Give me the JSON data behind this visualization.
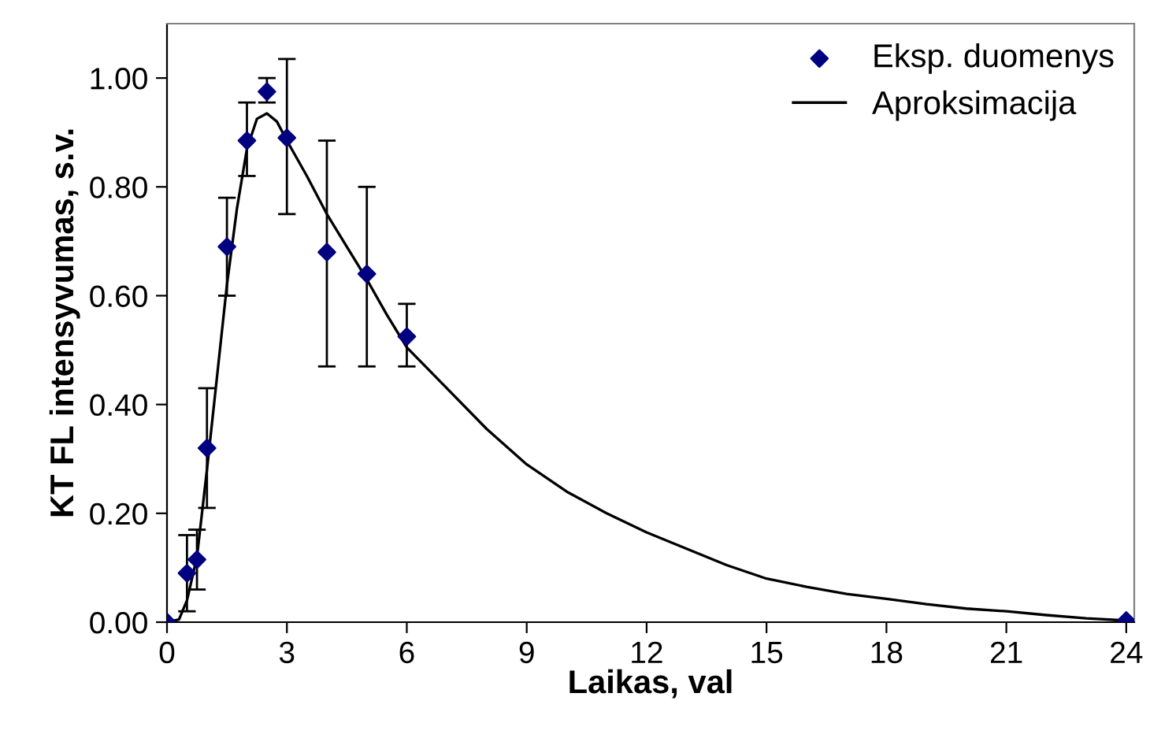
{
  "chart_data": {
    "type": "scatter",
    "xlabel": "Laikas, val",
    "ylabel": "KT FL intensyvumas, s.v.",
    "xlim": [
      0,
      24.2
    ],
    "xticks": [
      0,
      3,
      6,
      9,
      12,
      15,
      18,
      21,
      24
    ],
    "ylim": [
      0,
      1.1
    ],
    "yticks": [
      {
        "value": 0,
        "label": "0.00"
      },
      {
        "value": 0.2,
        "label": "0.20"
      },
      {
        "value": 0.4,
        "label": "0.40"
      },
      {
        "value": 0.6,
        "label": "0.60"
      },
      {
        "value": 0.8,
        "label": "0.80"
      },
      {
        "value": 1.0,
        "label": "1.00"
      }
    ],
    "grid": false,
    "legend": "top right",
    "series": [
      {
        "name": "Eksp. duomenys",
        "marker": "diamond",
        "color": "#000080",
        "x": [
          0,
          0.5,
          0.75,
          1,
          1.5,
          2,
          2.5,
          3,
          4,
          5,
          6,
          24
        ],
        "values": [
          0,
          0.09,
          0.115,
          0.32,
          0.69,
          0.885,
          0.975,
          0.89,
          0.68,
          0.64,
          0.525,
          0.003
        ],
        "errors": [
          null,
          [
            0.02,
            0.16
          ],
          [
            0.06,
            0.17
          ],
          [
            0.21,
            0.43
          ],
          [
            0.6,
            0.78
          ],
          [
            0.82,
            0.955
          ],
          [
            0.955,
            1.0
          ],
          [
            0.75,
            1.035
          ],
          [
            0.47,
            0.885
          ],
          [
            0.47,
            0.8
          ],
          [
            0.47,
            0.585
          ],
          null
        ]
      },
      {
        "name": "Aproksimacija",
        "type": "line",
        "marker": "none",
        "line_style": "solid",
        "color": "#000000",
        "x": [
          0,
          0.3,
          0.5,
          0.75,
          1,
          1.25,
          1.5,
          1.75,
          2,
          2.25,
          2.5,
          2.75,
          3,
          3.5,
          4,
          4.5,
          5,
          5.5,
          6,
          7,
          8,
          9,
          10,
          11,
          12,
          13,
          14,
          15,
          16,
          17,
          18,
          19,
          20,
          21,
          22,
          23,
          24
        ],
        "values": [
          0,
          0.005,
          0.04,
          0.12,
          0.28,
          0.45,
          0.62,
          0.76,
          0.87,
          0.925,
          0.935,
          0.92,
          0.885,
          0.82,
          0.75,
          0.69,
          0.63,
          0.565,
          0.505,
          0.43,
          0.355,
          0.29,
          0.24,
          0.2,
          0.165,
          0.135,
          0.105,
          0.08,
          0.065,
          0.052,
          0.043,
          0.033,
          0.025,
          0.02,
          0.013,
          0.007,
          0.003
        ]
      }
    ]
  }
}
